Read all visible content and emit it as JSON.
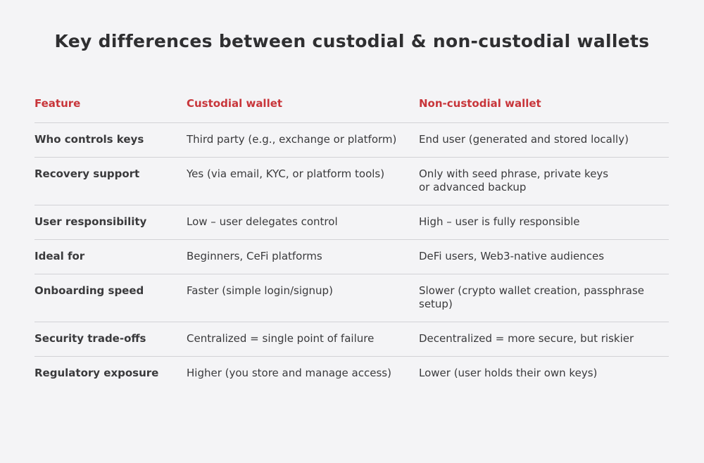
{
  "title": "Key differences between custodial & non-custodial wallets",
  "columns": [
    "Feature",
    "Custodial wallet",
    "Non-custodial wallet"
  ],
  "rows": [
    {
      "feature": "Who controls keys",
      "custodial": "Third party (e.g., exchange or platform)",
      "non_custodial": "End user (generated and stored locally)"
    },
    {
      "feature": "Recovery support",
      "custodial": "Yes (via email, KYC, or platform tools)",
      "non_custodial": "Only with seed phrase, private keys\nor advanced backup"
    },
    {
      "feature": "User responsibility",
      "custodial": "Low – user delegates control",
      "non_custodial": "High – user is fully responsible"
    },
    {
      "feature": "Ideal for",
      "custodial": "Beginners, CeFi platforms",
      "non_custodial": "DeFi users, Web3-native audiences"
    },
    {
      "feature": "Onboarding speed",
      "custodial": "Faster (simple login/signup)",
      "non_custodial": "Slower (crypto wallet creation, passphrase\nsetup)"
    },
    {
      "feature": "Security trade-offs",
      "custodial": "Centralized = single point of failure",
      "non_custodial": "Decentralized = more secure, but riskier"
    },
    {
      "feature": "Regulatory exposure",
      "custodial": "Higher (you store and manage access)",
      "non_custodial": "Lower (user holds their own keys)"
    }
  ],
  "colors": {
    "background": "#f4f4f6",
    "header_accent": "#c8353a",
    "text": "#3a3a3c",
    "divider": "#d2d2d6"
  }
}
